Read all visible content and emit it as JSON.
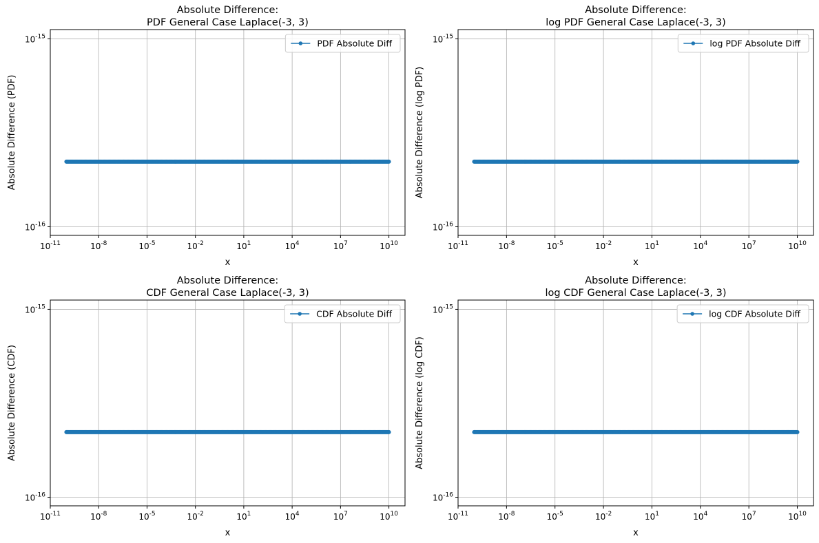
{
  "chart_data": [
    {
      "type": "line",
      "title_lines": [
        "Absolute Difference:",
        "PDF General Case Laplace(-3, 3)"
      ],
      "xlabel": "x",
      "ylabel": "Absolute Difference (PDF)",
      "xscale": "log",
      "yscale": "log",
      "xlim": [
        1e-11,
        100000000000.0
      ],
      "ylim": [
        9e-17,
        1.12e-15
      ],
      "x_ticks": [
        {
          "exp": "-11",
          "value": 1e-11
        },
        {
          "exp": "-8",
          "value": 1e-08
        },
        {
          "exp": "-5",
          "value": 1e-05
        },
        {
          "exp": "-2",
          "value": 0.01
        },
        {
          "exp": "1",
          "value": 10.0
        },
        {
          "exp": "4",
          "value": 10000.0
        },
        {
          "exp": "7",
          "value": 10000000.0
        },
        {
          "exp": "10",
          "value": 10000000000.0
        }
      ],
      "y_ticks": [
        {
          "exp": "-16",
          "value": 1e-16
        },
        {
          "exp": "-15",
          "value": 1e-15
        }
      ],
      "grid": true,
      "legend_position": "top-right",
      "series": [
        {
          "name": "PDF Absolute Diff",
          "x_range": [
            1e-10,
            10000000000.0
          ],
          "y": 2.220446e-16,
          "marker": "point"
        }
      ]
    },
    {
      "type": "line",
      "title_lines": [
        "Absolute Difference:",
        "log PDF General Case Laplace(-3, 3)"
      ],
      "xlabel": "x",
      "ylabel": "Absolute Difference (log PDF)",
      "xscale": "log",
      "yscale": "log",
      "xlim": [
        1e-11,
        100000000000.0
      ],
      "ylim": [
        9e-17,
        1.12e-15
      ],
      "x_ticks": [
        {
          "exp": "-11",
          "value": 1e-11
        },
        {
          "exp": "-8",
          "value": 1e-08
        },
        {
          "exp": "-5",
          "value": 1e-05
        },
        {
          "exp": "-2",
          "value": 0.01
        },
        {
          "exp": "1",
          "value": 10.0
        },
        {
          "exp": "4",
          "value": 10000.0
        },
        {
          "exp": "7",
          "value": 10000000.0
        },
        {
          "exp": "10",
          "value": 10000000000.0
        }
      ],
      "y_ticks": [
        {
          "exp": "-16",
          "value": 1e-16
        },
        {
          "exp": "-15",
          "value": 1e-15
        }
      ],
      "grid": true,
      "legend_position": "top-right",
      "series": [
        {
          "name": "log PDF Absolute Diff",
          "x_range": [
            1e-10,
            10000000000.0
          ],
          "y": 2.220446e-16,
          "marker": "point"
        }
      ]
    },
    {
      "type": "line",
      "title_lines": [
        "Absolute Difference:",
        "CDF General Case Laplace(-3, 3)"
      ],
      "xlabel": "x",
      "ylabel": "Absolute Difference (CDF)",
      "xscale": "log",
      "yscale": "log",
      "xlim": [
        1e-11,
        100000000000.0
      ],
      "ylim": [
        9e-17,
        1.12e-15
      ],
      "x_ticks": [
        {
          "exp": "-11",
          "value": 1e-11
        },
        {
          "exp": "-8",
          "value": 1e-08
        },
        {
          "exp": "-5",
          "value": 1e-05
        },
        {
          "exp": "-2",
          "value": 0.01
        },
        {
          "exp": "1",
          "value": 10.0
        },
        {
          "exp": "4",
          "value": 10000.0
        },
        {
          "exp": "7",
          "value": 10000000.0
        },
        {
          "exp": "10",
          "value": 10000000000.0
        }
      ],
      "y_ticks": [
        {
          "exp": "-16",
          "value": 1e-16
        },
        {
          "exp": "-15",
          "value": 1e-15
        }
      ],
      "grid": true,
      "legend_position": "top-right",
      "series": [
        {
          "name": "CDF Absolute Diff",
          "x_range": [
            1e-10,
            10000000000.0
          ],
          "y": 2.220446e-16,
          "marker": "point"
        }
      ]
    },
    {
      "type": "line",
      "title_lines": [
        "Absolute Difference:",
        "log CDF General Case Laplace(-3, 3)"
      ],
      "xlabel": "x",
      "ylabel": "Absolute Difference (log CDF)",
      "xscale": "log",
      "yscale": "log",
      "xlim": [
        1e-11,
        100000000000.0
      ],
      "ylim": [
        9e-17,
        1.12e-15
      ],
      "x_ticks": [
        {
          "exp": "-11",
          "value": 1e-11
        },
        {
          "exp": "-8",
          "value": 1e-08
        },
        {
          "exp": "-5",
          "value": 1e-05
        },
        {
          "exp": "-2",
          "value": 0.01
        },
        {
          "exp": "1",
          "value": 10.0
        },
        {
          "exp": "4",
          "value": 10000.0
        },
        {
          "exp": "7",
          "value": 10000000.0
        },
        {
          "exp": "10",
          "value": 10000000000.0
        }
      ],
      "y_ticks": [
        {
          "exp": "-16",
          "value": 1e-16
        },
        {
          "exp": "-15",
          "value": 1e-15
        }
      ],
      "grid": true,
      "legend_position": "top-right",
      "series": [
        {
          "name": "log CDF Absolute Diff",
          "x_range": [
            1e-10,
            10000000000.0
          ],
          "y": 2.220446e-16,
          "marker": "point"
        }
      ]
    }
  ],
  "tick_base": "10",
  "colors": {
    "series": "#1f77b4",
    "grid": "#b0b0b0",
    "axes": "#000000",
    "legend_border": "#cccccc"
  }
}
